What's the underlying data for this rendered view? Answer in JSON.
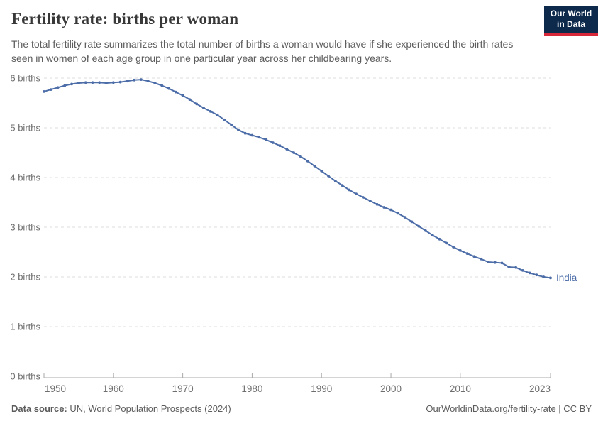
{
  "header": {
    "title": "Fertility rate: births per woman",
    "subtitle": "The total fertility rate summarizes the total number of births a woman would have if she experienced the birth rates seen in women of each age group in one particular year across her childbearing years.",
    "logo_line1": "Our World",
    "logo_line2": "in Data"
  },
  "colors": {
    "line": "#4c6da8",
    "grid": "#dedede",
    "axis": "#a9a9a9",
    "tick_label": "#6e6e6e",
    "logo_bg": "#0d2a4c",
    "logo_stripe": "#d62839"
  },
  "chart_data": {
    "type": "line",
    "title": "Fertility rate: births per woman",
    "xlabel": "",
    "ylabel": "births per woman",
    "xlim": [
      1950,
      2023
    ],
    "ylim": [
      0,
      6
    ],
    "x_ticks": [
      1950,
      1960,
      1970,
      1980,
      1990,
      2000,
      2010,
      2023
    ],
    "y_ticks": [
      0,
      1,
      2,
      3,
      4,
      5,
      6
    ],
    "y_tick_suffix": " births",
    "grid": "horizontal-dashed",
    "legend_position": "end-of-line-label",
    "x": [
      1950,
      1951,
      1952,
      1953,
      1954,
      1955,
      1956,
      1957,
      1958,
      1959,
      1960,
      1961,
      1962,
      1963,
      1964,
      1965,
      1966,
      1967,
      1968,
      1969,
      1970,
      1971,
      1972,
      1973,
      1974,
      1975,
      1976,
      1977,
      1978,
      1979,
      1980,
      1981,
      1982,
      1983,
      1984,
      1985,
      1986,
      1987,
      1988,
      1989,
      1990,
      1991,
      1992,
      1993,
      1994,
      1995,
      1996,
      1997,
      1998,
      1999,
      2000,
      2001,
      2002,
      2003,
      2004,
      2005,
      2006,
      2007,
      2008,
      2009,
      2010,
      2011,
      2012,
      2013,
      2014,
      2015,
      2016,
      2017,
      2018,
      2019,
      2020,
      2021,
      2022,
      2023
    ],
    "series": [
      {
        "name": "India",
        "color": "#4c6da8",
        "values": [
          5.73,
          5.77,
          5.81,
          5.85,
          5.88,
          5.9,
          5.91,
          5.91,
          5.91,
          5.9,
          5.91,
          5.92,
          5.94,
          5.96,
          5.97,
          5.94,
          5.9,
          5.85,
          5.79,
          5.72,
          5.65,
          5.57,
          5.48,
          5.4,
          5.33,
          5.26,
          5.16,
          5.06,
          4.96,
          4.89,
          4.85,
          4.81,
          4.76,
          4.7,
          4.64,
          4.57,
          4.5,
          4.42,
          4.33,
          4.23,
          4.13,
          4.03,
          3.93,
          3.84,
          3.75,
          3.67,
          3.6,
          3.53,
          3.46,
          3.4,
          3.35,
          3.28,
          3.2,
          3.11,
          3.02,
          2.93,
          2.84,
          2.76,
          2.68,
          2.6,
          2.53,
          2.47,
          2.41,
          2.36,
          2.3,
          2.29,
          2.28,
          2.2,
          2.19,
          2.13,
          2.08,
          2.04,
          2.0,
          1.98
        ]
      }
    ]
  },
  "footer": {
    "source_label": "Data source:",
    "source_text": " UN, World Population Prospects (2024)",
    "link_text": "OurWorldinData.org/fertility-rate | CC BY"
  }
}
